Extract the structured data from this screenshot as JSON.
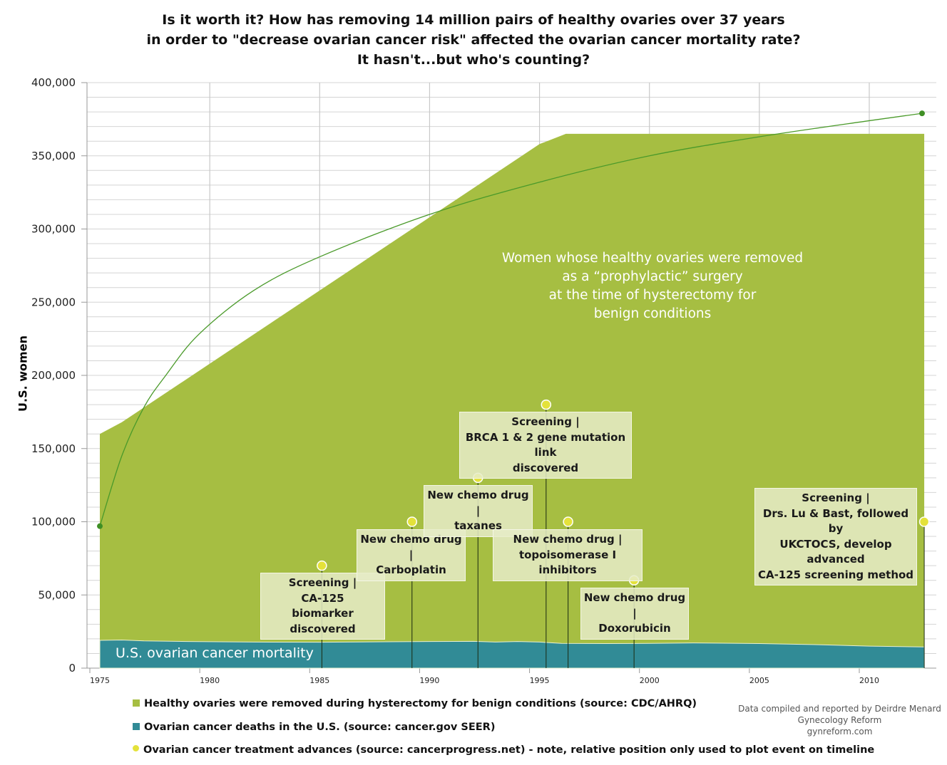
{
  "chart_data": {
    "type": "area",
    "title": [
      "Is it worth it? How has removing 14 million pairs of healthy ovaries over 37 years",
      "in order to \"decrease ovarian cancer risk\" affected the ovarian cancer mortality rate?",
      "It hasn't...but who's counting?"
    ],
    "ylabel": "U.S. women",
    "xlabel": "",
    "xlim": [
      1975,
      2012.5
    ],
    "ylim": [
      0,
      400000
    ],
    "yticks": [
      {
        "v": 0,
        "label": "0"
      },
      {
        "v": 50000,
        "label": "50,000"
      },
      {
        "v": 100000,
        "label": "100,000"
      },
      {
        "v": 150000,
        "label": "150,000"
      },
      {
        "v": 200000,
        "label": "200,000"
      },
      {
        "v": 250000,
        "label": "250,000"
      },
      {
        "v": 300000,
        "label": "300,000"
      },
      {
        "v": 350000,
        "label": "350,000"
      },
      {
        "v": 400000,
        "label": "400,000"
      }
    ],
    "xticks": [
      {
        "v": 1975,
        "label": "1975"
      },
      {
        "v": 1980,
        "label": "1980"
      },
      {
        "v": 1985,
        "label": "1985"
      },
      {
        "v": 1990,
        "label": "1990"
      },
      {
        "v": 1995,
        "label": "1995"
      },
      {
        "v": 2000,
        "label": "2000"
      },
      {
        "v": 2005,
        "label": "2005"
      },
      {
        "v": 2010,
        "label": "2010"
      }
    ],
    "grid": true,
    "series": [
      {
        "name": "Healthy ovaries were removed during hysterectomy for benign conditions (source: CDC/AHRQ)",
        "type": "area",
        "color": "#a6be42",
        "x": [
          1975,
          1976,
          1995,
          1996.2,
          2012.5
        ],
        "y": [
          160000,
          168000,
          358000,
          365000,
          365000
        ],
        "label": [
          "Women whose healthy ovaries were removed",
          "as a “prophylactic” surgery",
          "at the time of hysterectomy for",
          "benign conditions"
        ]
      },
      {
        "name": "Ovarian cancer deaths in the U.S. (source: cancer.gov SEER)",
        "type": "area",
        "color": "#318b96",
        "x": [
          1975,
          1976,
          1977,
          1979,
          1982,
          1985,
          1988,
          1990,
          1992,
          1993,
          1994,
          1995,
          1996,
          1998,
          2000,
          2002,
          2005,
          2008,
          2010,
          2012.5
        ],
        "y": [
          19000,
          19200,
          18600,
          18200,
          17800,
          17700,
          18000,
          18200,
          18300,
          17800,
          18200,
          17800,
          16900,
          16800,
          16900,
          17200,
          16800,
          15900,
          15000,
          14500
        ],
        "label": "U.S. ovarian cancer mortality"
      },
      {
        "name": "Trend line",
        "type": "line",
        "color": "#4a9a2a",
        "x": [
          1975,
          1976,
          1977,
          1978,
          1979.5,
          1982,
          1985,
          1990,
          1995,
          2000,
          2005,
          2010,
          2012.4
        ],
        "y": [
          97000,
          145000,
          178000,
          200000,
          228000,
          258000,
          281000,
          310000,
          332000,
          350000,
          363000,
          374000,
          379000
        ]
      },
      {
        "name": "Ovarian cancer treatment advances (source: cancerprogress.net) - note, relative position only used to plot event on timeline",
        "type": "events",
        "color": "#e4e23a",
        "events": [
          {
            "x": 1985.1,
            "y": 70000,
            "lines": [
              "Screening |",
              "CA-125",
              "biomarker discovered"
            ]
          },
          {
            "x": 1989.2,
            "y": 100000,
            "lines": [
              "New chemo drug |",
              "Carboplatin"
            ]
          },
          {
            "x": 1992.2,
            "y": 130000,
            "lines": [
              "New chemo drug |",
              "taxanes"
            ]
          },
          {
            "x": 1995.3,
            "y": 180000,
            "lines": [
              "Screening |",
              "BRCA 1 & 2 gene mutation link",
              "discovered"
            ]
          },
          {
            "x": 1996.3,
            "y": 100000,
            "lines": [
              "New chemo drug |",
              "topoisomerase I inhibitors"
            ]
          },
          {
            "x": 1999.3,
            "y": 60000,
            "lines": [
              "New chemo drug |",
              "Doxorubicin"
            ]
          },
          {
            "x": 2012.5,
            "y": 100000,
            "lines": [
              "Screening |",
              "Drs. Lu & Bast, followed by",
              "UKCTOCS, develop advanced",
              "CA-125 screening method"
            ]
          }
        ]
      }
    ],
    "legend": [
      {
        "label": "Healthy ovaries were removed during hysterectomy for benign conditions (source: CDC/AHRQ)",
        "color": "#a6be42"
      },
      {
        "label": "Ovarian cancer deaths in the U.S. (source: cancer.gov SEER)",
        "color": "#318b96"
      },
      {
        "label": "Ovarian cancer treatment advances (source: cancerprogress.net) - note, relative position only used to plot event on timeline",
        "color": "#e4e23a"
      }
    ],
    "legend_position": "bottom-left"
  },
  "credit": [
    "Data compiled and reported by Deirdre Menard",
    "Gynecology Reform",
    "gynreform.com"
  ]
}
